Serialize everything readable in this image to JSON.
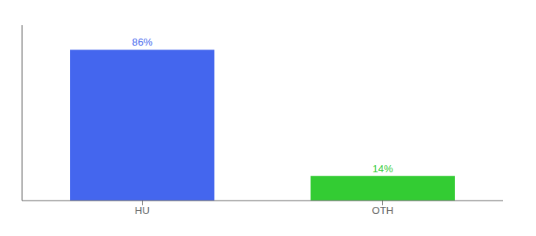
{
  "chart_data": {
    "type": "bar",
    "categories": [
      "HU",
      "OTH"
    ],
    "values": [
      86,
      14
    ],
    "value_labels": [
      "86%",
      "14%"
    ],
    "data_labels": true,
    "colors": [
      "#4466ee",
      "#33cc33"
    ],
    "ylim": [
      0,
      100
    ],
    "tick_labels": "x",
    "grid": false
  }
}
